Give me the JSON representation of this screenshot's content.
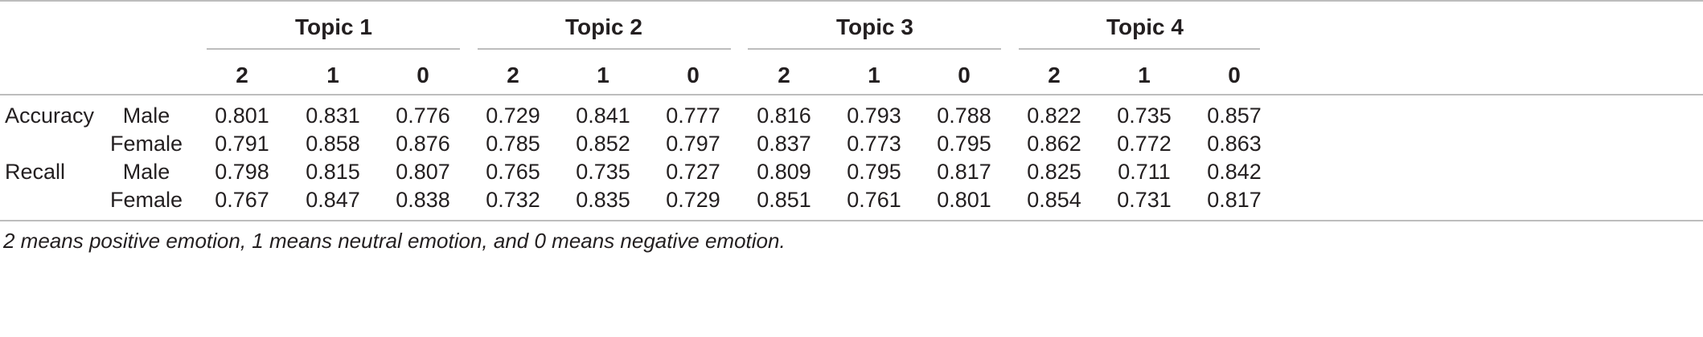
{
  "table": {
    "topics": [
      "Topic 1",
      "Topic 2",
      "Topic 3",
      "Topic 4"
    ],
    "sub_columns": [
      "2",
      "1",
      "0",
      "2",
      "1",
      "0",
      "2",
      "1",
      "0",
      "2",
      "1",
      "0"
    ],
    "rows": [
      {
        "metric": "Accuracy",
        "gender": "Male",
        "values": [
          "0.801",
          "0.831",
          "0.776",
          "0.729",
          "0.841",
          "0.777",
          "0.816",
          "0.793",
          "0.788",
          "0.822",
          "0.735",
          "0.857"
        ]
      },
      {
        "metric": "",
        "gender": "Female",
        "values": [
          "0.791",
          "0.858",
          "0.876",
          "0.785",
          "0.852",
          "0.797",
          "0.837",
          "0.773",
          "0.795",
          "0.862",
          "0.772",
          "0.863"
        ]
      },
      {
        "metric": "Recall",
        "gender": "Male",
        "values": [
          "0.798",
          "0.815",
          "0.807",
          "0.765",
          "0.735",
          "0.727",
          "0.809",
          "0.795",
          "0.817",
          "0.825",
          "0.711",
          "0.842"
        ]
      },
      {
        "metric": "",
        "gender": "Female",
        "values": [
          "0.767",
          "0.847",
          "0.838",
          "0.732",
          "0.835",
          "0.729",
          "0.851",
          "0.761",
          "0.801",
          "0.854",
          "0.731",
          "0.817"
        ]
      }
    ],
    "footnote": "2 means positive emotion, 1 means neutral emotion, and 0 means negative emotion."
  }
}
